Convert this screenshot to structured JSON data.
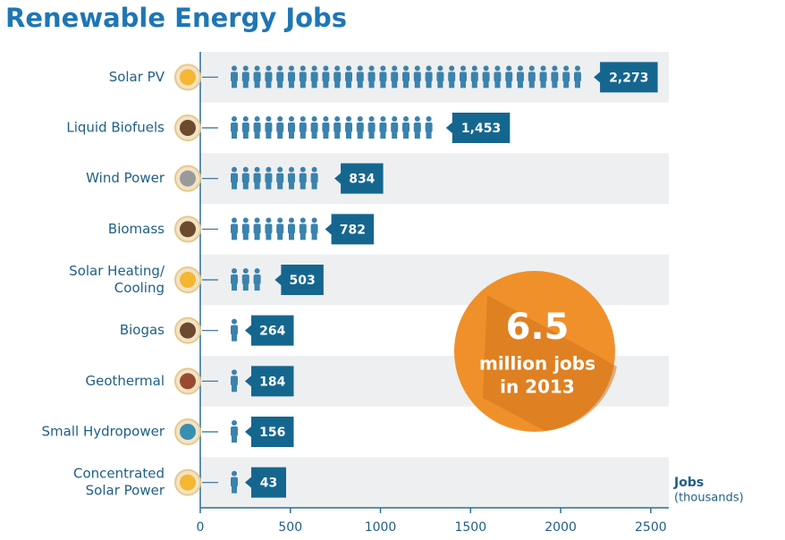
{
  "chart_data": {
    "type": "pictogram-bar",
    "title": "Renewable Energy Jobs",
    "categories": [
      [
        "Solar PV"
      ],
      [
        "Liquid Biofuels"
      ],
      [
        "Wind Power"
      ],
      [
        "Biomass"
      ],
      [
        "Solar Heating/",
        "Cooling"
      ],
      [
        "Biogas"
      ],
      [
        "Geothermal"
      ],
      [
        "Small Hydropower"
      ],
      [
        "Concentrated",
        "Solar Power"
      ]
    ],
    "values": [
      2273,
      1453,
      834,
      782,
      503,
      264,
      184,
      156,
      43
    ],
    "value_labels": [
      "2,273",
      "1,453",
      "834",
      "782",
      "503",
      "264",
      "184",
      "156",
      "43"
    ],
    "color": "#3b82ad",
    "label_color": "#15668f",
    "xlim": [
      0,
      2600
    ],
    "xticks": [
      0,
      500,
      1000,
      1500,
      2000,
      2500
    ],
    "x_label": [
      "Jobs",
      "(thousands)"
    ],
    "annotation": [
      "6.5",
      "million jobs",
      "in 2013"
    ],
    "annotation_color": "#f0902a"
  }
}
